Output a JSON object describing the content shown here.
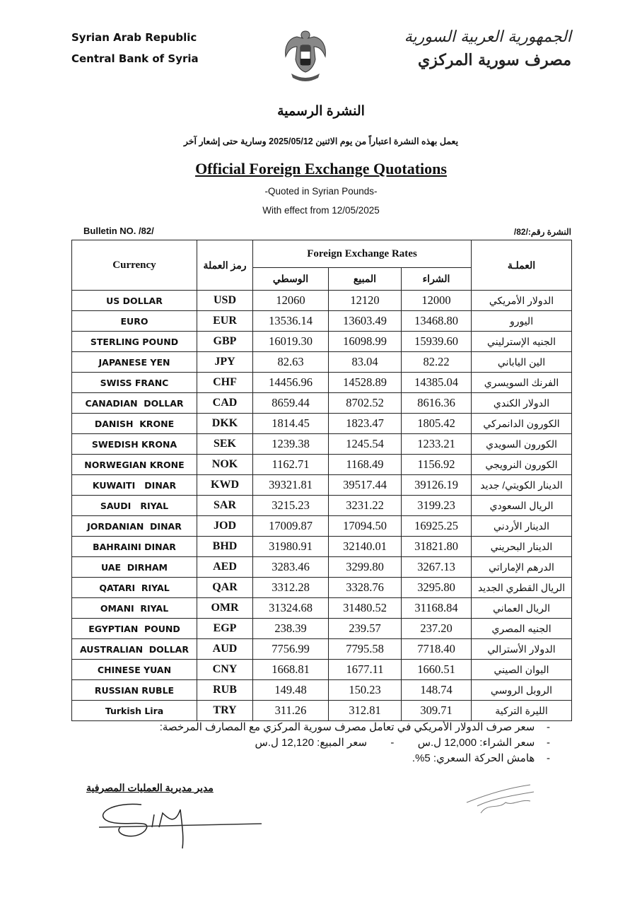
{
  "header": {
    "country_en": "Syrian Arab Republic",
    "bank_en": "Central Bank of Syria",
    "country_ar": "الجمهورية العربية السورية",
    "bank_ar": "مصرف سورية المركزي",
    "emblem_icon": "syrian-eagle-emblem"
  },
  "title_ar": "النشرة الرسمية",
  "effect_ar": "يعمل بهذه النشرة اعتباراً من يوم الاثنين 2025/05/12 وسارية حتى إشعار آخر",
  "title_en": "Official Foreign Exchange Quotations",
  "subtitle_en": "-Quoted in Syrian Pounds-",
  "effect_en": "With effect from 12/05/2025",
  "bulletin_en": "Bulletin NO. /82/",
  "bulletin_ar": "النشرة رقم:/82/",
  "table": {
    "headers": {
      "currency": "Currency",
      "code_ar": "رمز العملة",
      "rates": "Foreign Exchange Rates",
      "mid_ar": "الوسطي",
      "sell_ar": "المبيع",
      "buy_ar": "الشراء",
      "currency_ar": "العملـة"
    },
    "rows": [
      {
        "name": "US DOLLAR",
        "code": "USD",
        "mid": "12060",
        "sell": "12120",
        "buy": "12000",
        "name_ar": "الدولار الأمريكي"
      },
      {
        "name": "EURO",
        "code": "EUR",
        "mid": "13536.14",
        "sell": "13603.49",
        "buy": "13468.80",
        "name_ar": "اليورو"
      },
      {
        "name": "STERLING POUND",
        "code": "GBP",
        "mid": "16019.30",
        "sell": "16098.99",
        "buy": "15939.60",
        "name_ar": "الجنيه الإسترليني"
      },
      {
        "name": "JAPANESE YEN",
        "code": "JPY",
        "mid": "82.63",
        "sell": "83.04",
        "buy": "82.22",
        "name_ar": "الين الياباني"
      },
      {
        "name": "SWISS FRANC",
        "code": "CHF",
        "mid": "14456.96",
        "sell": "14528.89",
        "buy": "14385.04",
        "name_ar": "الفرنك السويسري"
      },
      {
        "name": "CANADIAN  DOLLAR",
        "code": "CAD",
        "mid": "8659.44",
        "sell": "8702.52",
        "buy": "8616.36",
        "name_ar": "الدولار الكندي"
      },
      {
        "name": "DANISH  KRONE",
        "code": "DKK",
        "mid": "1814.45",
        "sell": "1823.47",
        "buy": "1805.42",
        "name_ar": "الكورون الدانمركي"
      },
      {
        "name": "SWEDISH KRONA",
        "code": "SEK",
        "mid": "1239.38",
        "sell": "1245.54",
        "buy": "1233.21",
        "name_ar": "الكورون السويدي"
      },
      {
        "name": "NORWEGIAN KRONE",
        "code": "NOK",
        "mid": "1162.71",
        "sell": "1168.49",
        "buy": "1156.92",
        "name_ar": "الكورون النرويجي"
      },
      {
        "name": "KUWAITI   DINAR",
        "code": "KWD",
        "mid": "39321.81",
        "sell": "39517.44",
        "buy": "39126.19",
        "name_ar": "الدينار الكويتي/ جديد"
      },
      {
        "name": "SAUDI   RIYAL",
        "code": "SAR",
        "mid": "3215.23",
        "sell": "3231.22",
        "buy": "3199.23",
        "name_ar": "الريال السعودي"
      },
      {
        "name": "JORDANIAN  DINAR",
        "code": "JOD",
        "mid": "17009.87",
        "sell": "17094.50",
        "buy": "16925.25",
        "name_ar": "الدينار الأردني"
      },
      {
        "name": "BAHRAINI DINAR",
        "code": "BHD",
        "mid": "31980.91",
        "sell": "32140.01",
        "buy": "31821.80",
        "name_ar": "الدينار البحريني"
      },
      {
        "name": "UAE  DIRHAM",
        "code": "AED",
        "mid": "3283.46",
        "sell": "3299.80",
        "buy": "3267.13",
        "name_ar": "الدرهم الإماراتي"
      },
      {
        "name": "QATARI  RIYAL",
        "code": "QAR",
        "mid": "3312.28",
        "sell": "3328.76",
        "buy": "3295.80",
        "name_ar": "الريال القطري الجديد"
      },
      {
        "name": "OMANI  RIYAL",
        "code": "OMR",
        "mid": "31324.68",
        "sell": "31480.52",
        "buy": "31168.84",
        "name_ar": "الريال العماني"
      },
      {
        "name": "EGYPTIAN  POUND",
        "code": "EGP",
        "mid": "238.39",
        "sell": "239.57",
        "buy": "237.20",
        "name_ar": "الجنيه المصري"
      },
      {
        "name": "AUSTRALIAN  DOLLAR",
        "code": "AUD",
        "mid": "7756.99",
        "sell": "7795.58",
        "buy": "7718.40",
        "name_ar": "الدولار الأسترالي"
      },
      {
        "name": "CHINESE YUAN",
        "code": "CNY",
        "mid": "1668.81",
        "sell": "1677.11",
        "buy": "1660.51",
        "name_ar": "اليوان الصيني"
      },
      {
        "name": "RUSSIAN RUBLE",
        "code": "RUB",
        "mid": "149.48",
        "sell": "150.23",
        "buy": "148.74",
        "name_ar": "الروبل الروسي"
      },
      {
        "name": "Turkish Lira",
        "code": "TRY",
        "mid": "311.26",
        "sell": "312.81",
        "buy": "309.71",
        "name_ar": "الليرة التركية"
      }
    ]
  },
  "notes": [
    "-    سعر صرف الدولار الأمريكي في تعامل مصرف سورية المركزي مع المصارف المرخصة:",
    "-    سعر الشراء: 12,000 ل.س        -        سعر المبيع: 12,120 ل.س",
    "-    هامش الحركة السعري: 5%."
  ],
  "signature_title_ar": "مدير مديرية العمليات المصرفية"
}
